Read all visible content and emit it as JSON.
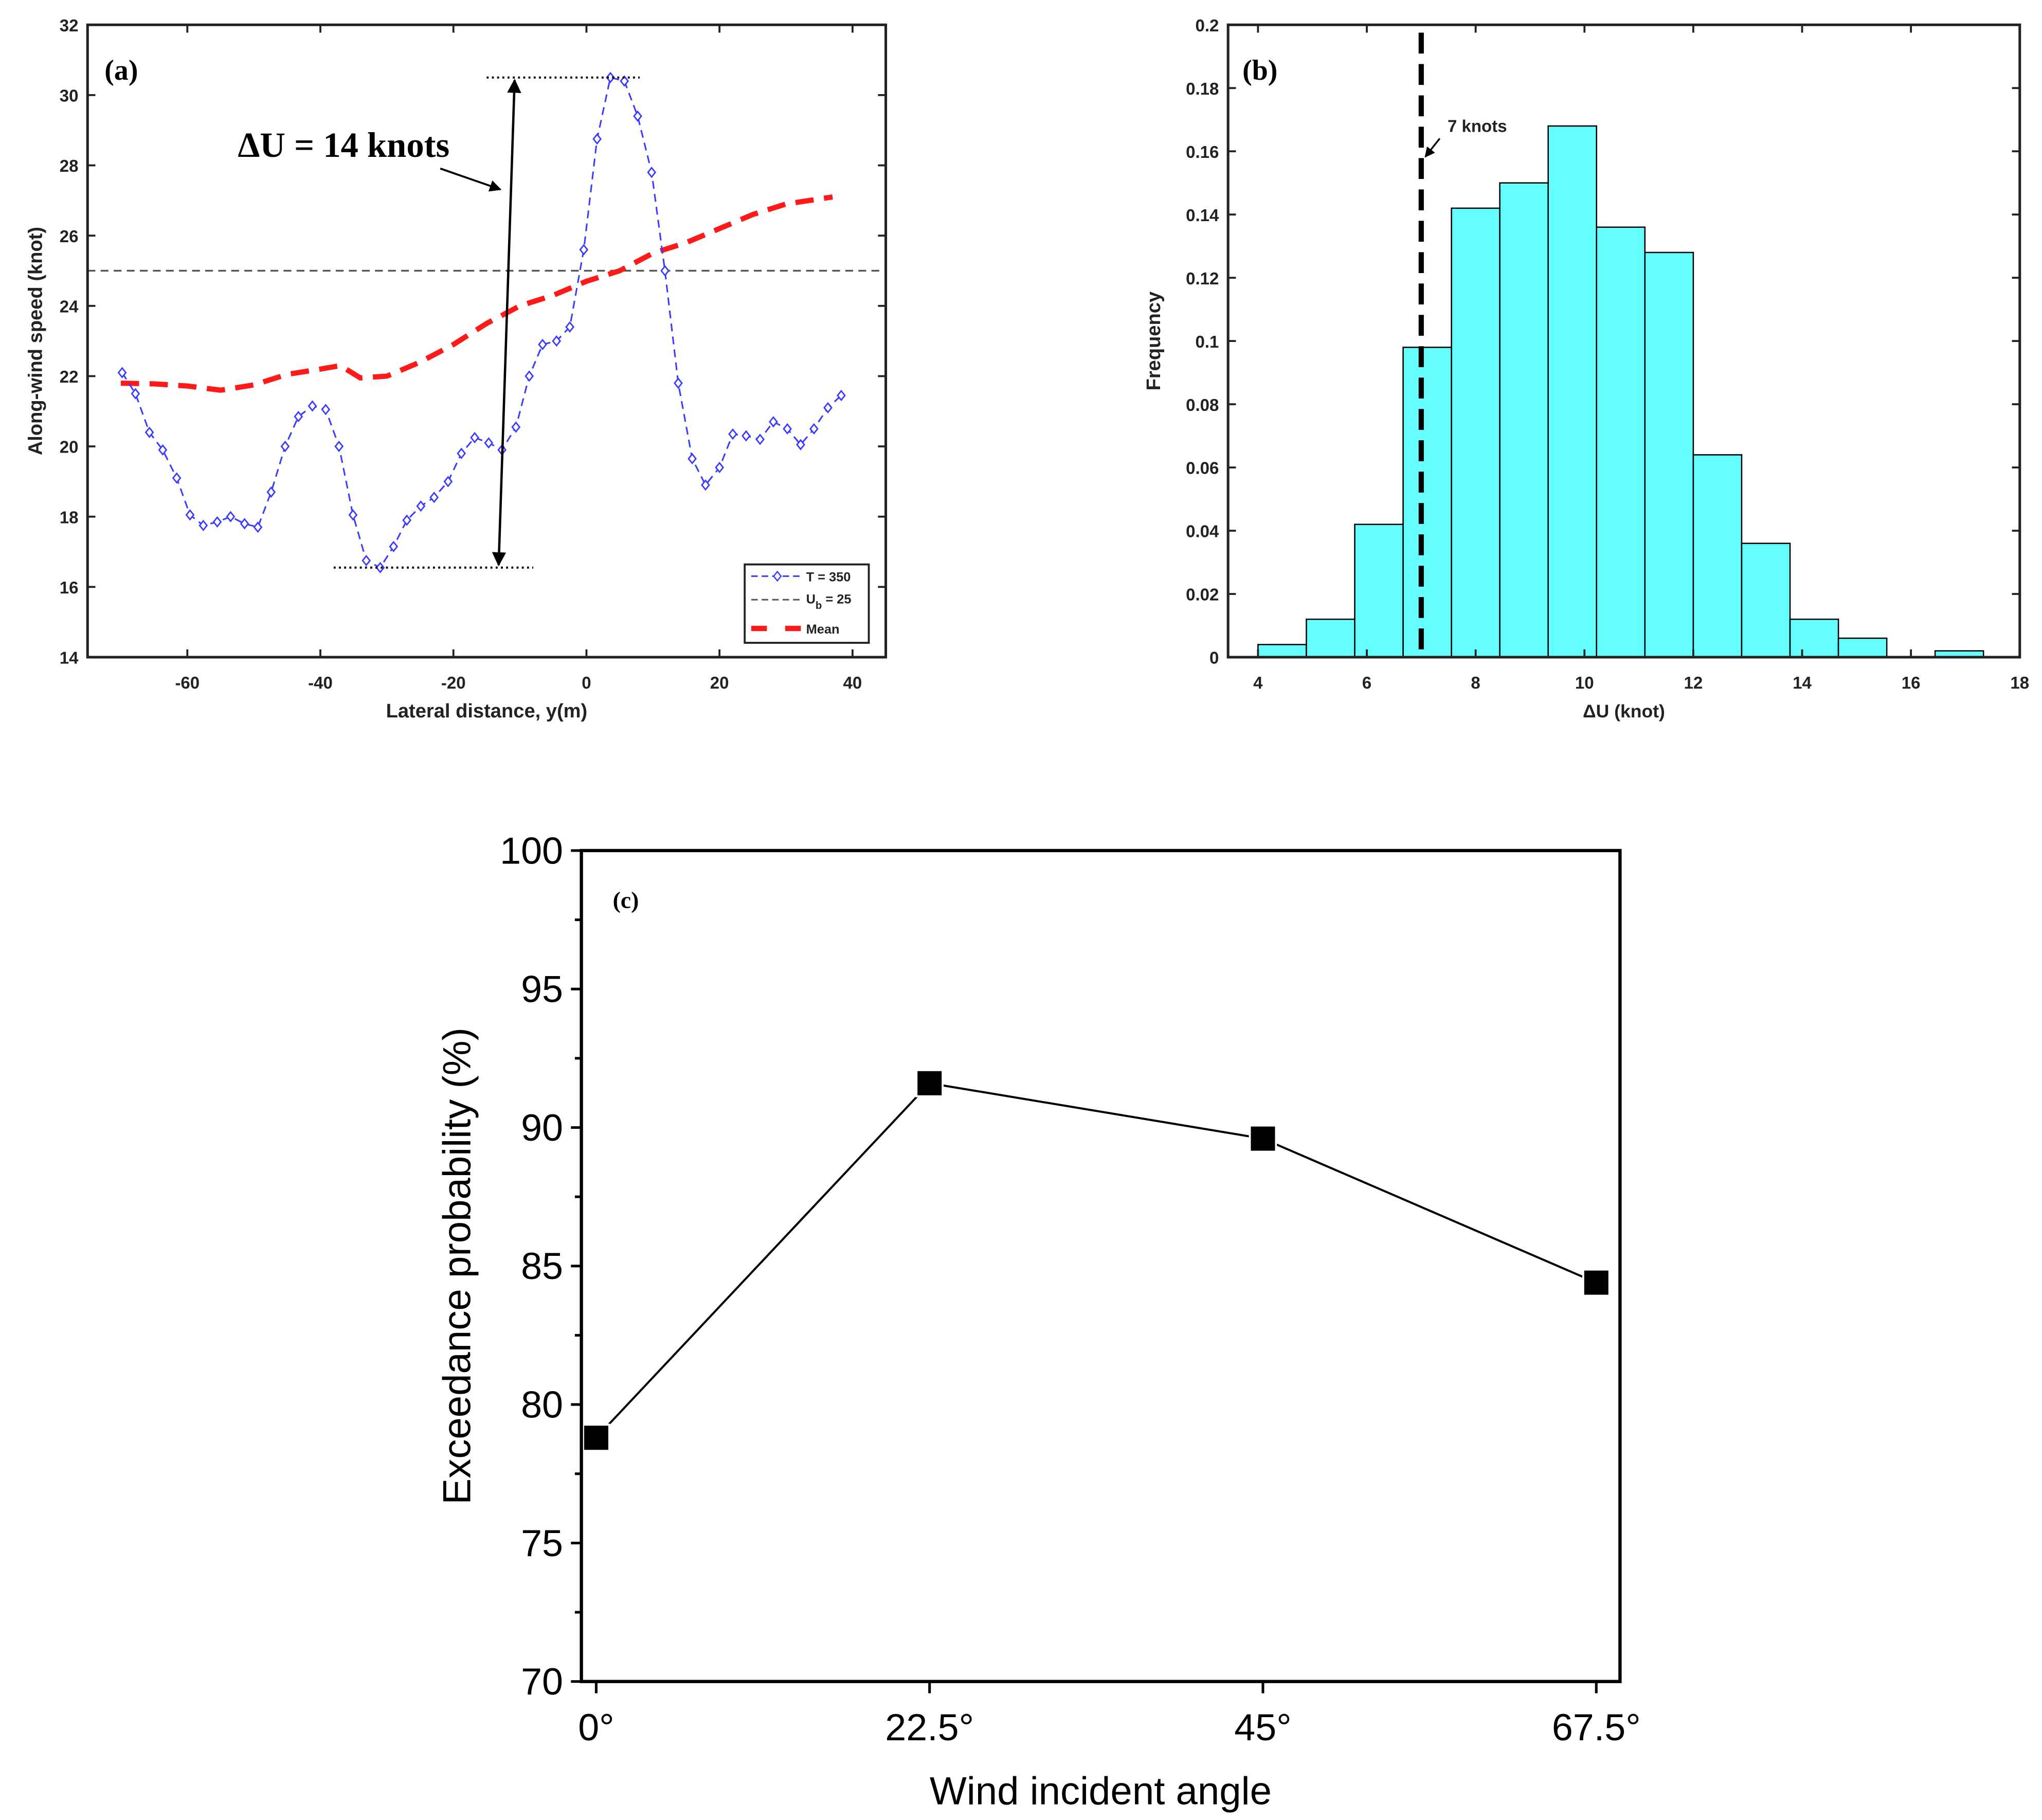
{
  "chart_data": [
    {
      "type": "line",
      "panel_label": "(a)",
      "xlabel": "Lateral distance, y(m)",
      "ylabel": "Along-wind speed (knot)",
      "xlim": [
        -75,
        45
      ],
      "ylim": [
        14,
        32
      ],
      "xticks": [
        -60,
        -40,
        -20,
        0,
        20,
        40
      ],
      "yticks": [
        14,
        16,
        18,
        20,
        22,
        24,
        26,
        28,
        30,
        32
      ],
      "grid": false,
      "legend_placement": "bottom-right",
      "series": [
        {
          "name": "T = 350",
          "color": "#3b3bff",
          "style": "dashed with diamond markers",
          "x": [
            -69.8,
            -67.8,
            -65.7,
            -63.7,
            -61.6,
            -59.6,
            -57.6,
            -55.5,
            -53.5,
            -51.4,
            -49.4,
            -47.4,
            -45.3,
            -43.3,
            -41.2,
            -39.2,
            -37.2,
            -35.1,
            -33.1,
            -31.0,
            -29.0,
            -27.0,
            -24.9,
            -22.9,
            -20.8,
            -18.8,
            -16.8,
            -14.7,
            -12.7,
            -10.6,
            -8.6,
            -6.6,
            -4.5,
            -2.5,
            -0.4,
            1.6,
            3.6,
            5.7,
            7.7,
            9.8,
            11.8,
            13.8,
            15.9,
            17.9,
            20.0,
            22.0,
            24.0,
            26.1,
            28.1,
            30.2,
            32.2,
            34.2,
            36.3,
            38.3
          ],
          "y": [
            22.1,
            21.5,
            20.4,
            19.9,
            19.1,
            18.05,
            17.75,
            17.85,
            18.0,
            17.8,
            17.7,
            18.7,
            20.0,
            20.85,
            21.15,
            21.05,
            20.0,
            18.05,
            16.75,
            16.55,
            17.15,
            17.9,
            18.3,
            18.55,
            19.0,
            19.8,
            20.25,
            20.1,
            19.9,
            20.55,
            22.0,
            22.9,
            23.0,
            23.4,
            25.6,
            28.75,
            30.5,
            30.4,
            29.4,
            27.8,
            25.0,
            21.8,
            19.65,
            18.9,
            19.4,
            20.35,
            20.3,
            20.2,
            20.7,
            20.5,
            20.05,
            20.5,
            21.1,
            21.45
          ]
        },
        {
          "name": "U_b = 25",
          "legend_main": "U",
          "legend_sub": "b",
          "legend_tail": " = 25",
          "color": "#555555",
          "style": "dashed horizontal",
          "x": [
            -75,
            45
          ],
          "y": [
            25,
            25
          ]
        },
        {
          "name": "Mean",
          "color": "#ff1a1a",
          "style": "thick dashed",
          "x": [
            -70,
            -65,
            -60,
            -55,
            -50,
            -45,
            -40,
            -37,
            -34,
            -30,
            -25,
            -20,
            -15,
            -12,
            -10,
            -5,
            0,
            5,
            10,
            15,
            20,
            25,
            30,
            37
          ],
          "y": [
            21.8,
            21.78,
            21.72,
            21.6,
            21.75,
            22.05,
            22.2,
            22.3,
            21.95,
            22.0,
            22.4,
            22.9,
            23.5,
            23.8,
            24.0,
            24.3,
            24.7,
            25.0,
            25.5,
            25.8,
            26.2,
            26.6,
            26.9,
            27.1
          ]
        }
      ],
      "annotation": {
        "text": "ΔU = 14 knots",
        "max": 30.5,
        "min": 16.55,
        "arrow_x": -12
      }
    },
    {
      "type": "bar",
      "subtype": "histogram",
      "panel_label": "(b)",
      "xlabel": "ΔU (knot)",
      "ylabel": "Frequency",
      "xlim": [
        3.45,
        18
      ],
      "ylim": [
        0,
        0.2
      ],
      "xticks": [
        4,
        6,
        8,
        10,
        12,
        14,
        16,
        18
      ],
      "yticks": [
        "0",
        "0.02",
        "0.04",
        "0.06",
        "0.08",
        "0.1",
        "0.12",
        "0.14",
        "0.16",
        "0.18",
        "0.2"
      ],
      "bar_color": "#66ffff",
      "bin_edges": [
        4,
        4.889,
        5.778,
        6.667,
        7.556,
        8.444,
        9.333,
        10.222,
        11.111,
        12,
        12.889,
        13.778,
        14.667,
        15.556,
        16.444,
        17.333
      ],
      "values": [
        0.004,
        0.012,
        0.042,
        0.098,
        0.142,
        0.15,
        0.168,
        0.136,
        0.128,
        0.064,
        0.036,
        0.012,
        0.006,
        0,
        0.002
      ],
      "threshold": {
        "x": 7,
        "label": "7 knots"
      }
    },
    {
      "type": "line",
      "panel_label": "(c)",
      "xlabel": "Wind incident angle",
      "ylabel": "Exceedance probability (%)",
      "xlim": [
        -1,
        69.1
      ],
      "ylim": [
        70,
        100
      ],
      "categories": [
        "0°",
        "22.5°",
        "45°",
        "67.5°"
      ],
      "x": [
        0,
        22.5,
        45,
        67.5
      ],
      "values": [
        78.8,
        91.6,
        89.6,
        84.4
      ],
      "yticks": [
        70,
        75,
        80,
        85,
        90,
        95,
        100
      ],
      "marker": "square",
      "color": "#000000"
    }
  ]
}
